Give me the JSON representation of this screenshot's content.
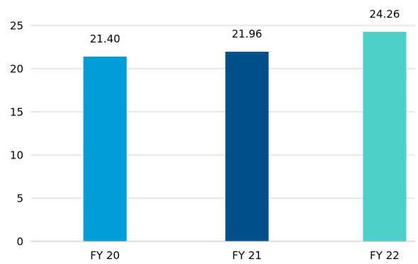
{
  "chart_data": {
    "type": "bar",
    "categories": [
      "FY 20",
      "FY 21",
      "FY 22"
    ],
    "values": [
      21.4,
      21.96,
      24.26
    ],
    "data_labels": [
      "21.40",
      "21.96",
      "24.26"
    ],
    "bar_colors": [
      "#009ed8",
      "#00518a",
      "#4ecfc9"
    ],
    "ylim": [
      0,
      25
    ],
    "yticks": [
      0,
      5,
      10,
      15,
      20,
      25
    ],
    "ytick_labels": [
      "0",
      "5",
      "10",
      "15",
      "20",
      "25"
    ],
    "grid": true,
    "legend": "none"
  }
}
